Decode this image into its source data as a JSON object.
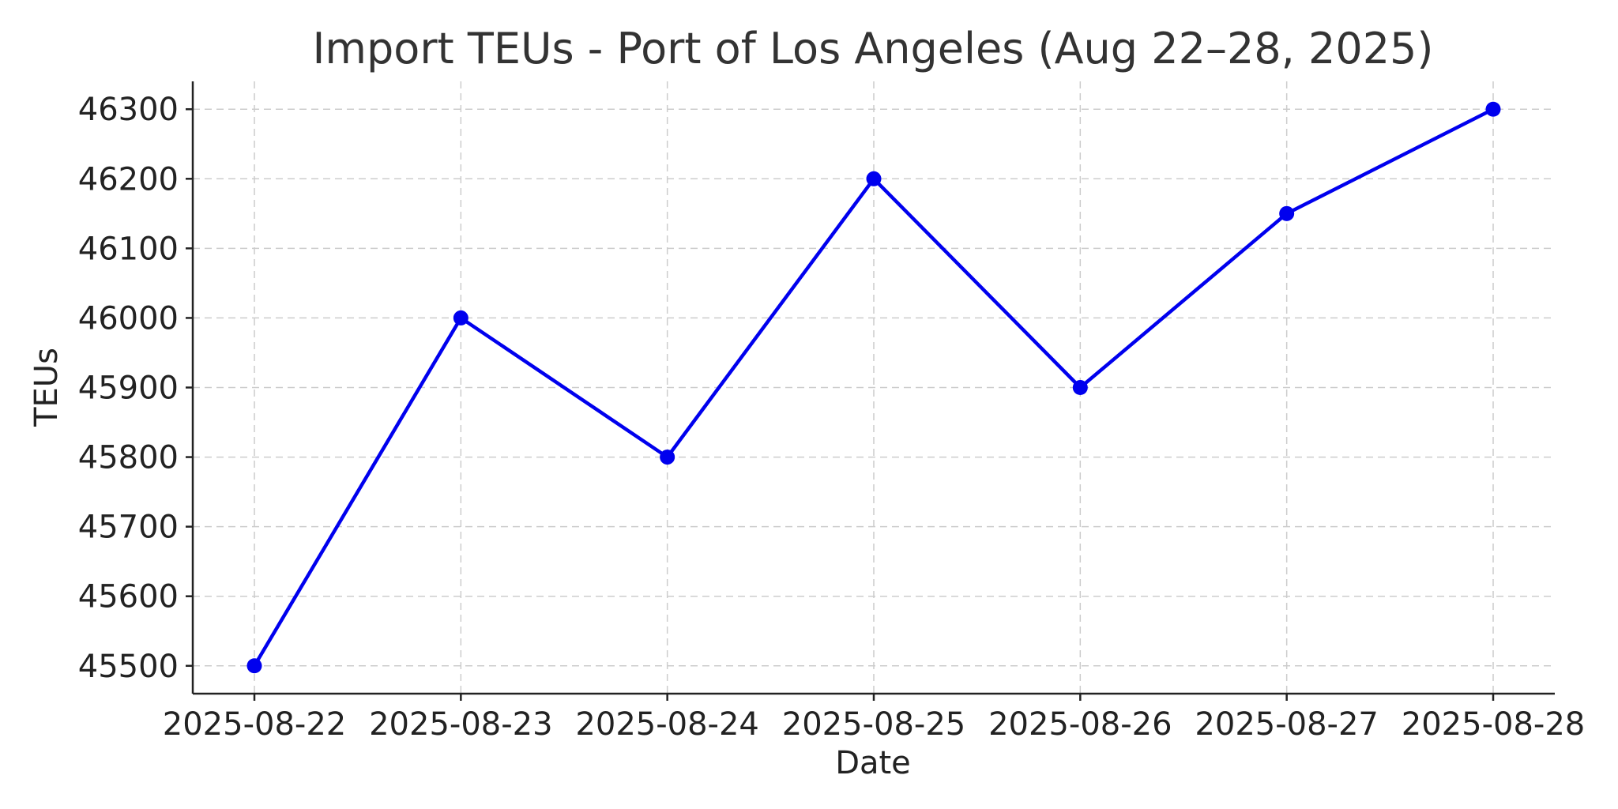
{
  "chart_data": {
    "type": "line",
    "title": "Import TEUs - Port of Los Angeles (Aug 22–28, 2025)",
    "xlabel": "Date",
    "ylabel": "TEUs",
    "x": [
      "2025-08-22",
      "2025-08-23",
      "2025-08-24",
      "2025-08-25",
      "2025-08-26",
      "2025-08-27",
      "2025-08-28"
    ],
    "series": [
      {
        "values": [
          45500,
          46000,
          45800,
          46200,
          45900,
          46150,
          46300
        ],
        "color": "#0000ee",
        "marker": "circle"
      }
    ],
    "y_ticks": [
      "45500",
      "45600",
      "45700",
      "45800",
      "45900",
      "46000",
      "46100",
      "46200",
      "46300"
    ],
    "ylim": [
      45460,
      46340
    ],
    "grid": true,
    "grid_style": "dashed",
    "legend": false
  }
}
